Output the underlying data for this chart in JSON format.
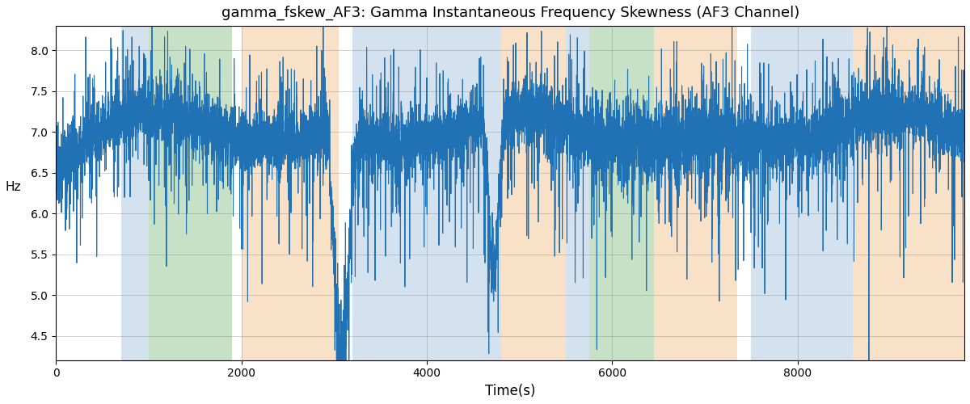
{
  "title": "gamma_fskew_AF3: Gamma Instantaneous Frequency Skewness (AF3 Channel)",
  "xlabel": "Time(s)",
  "ylabel": "Hz",
  "xlim": [
    0,
    9800
  ],
  "ylim": [
    4.2,
    8.3
  ],
  "yticks": [
    4.5,
    5.0,
    5.5,
    6.0,
    6.5,
    7.0,
    7.5,
    8.0
  ],
  "line_color": "#2171b5",
  "line_width": 0.8,
  "bg_regions": [
    {
      "start": 700,
      "end": 1000,
      "color": "#aac4e0",
      "alpha": 0.5
    },
    {
      "start": 1000,
      "end": 1900,
      "color": "#90c490",
      "alpha": 0.5
    },
    {
      "start": 2000,
      "end": 3050,
      "color": "#f5c99a",
      "alpha": 0.55
    },
    {
      "start": 3200,
      "end": 4800,
      "color": "#aac4e0",
      "alpha": 0.5
    },
    {
      "start": 4800,
      "end": 5500,
      "color": "#f5c99a",
      "alpha": 0.55
    },
    {
      "start": 5500,
      "end": 5750,
      "color": "#aac4e0",
      "alpha": 0.5
    },
    {
      "start": 5750,
      "end": 6450,
      "color": "#90c490",
      "alpha": 0.5
    },
    {
      "start": 6450,
      "end": 7350,
      "color": "#f5c99a",
      "alpha": 0.55
    },
    {
      "start": 7500,
      "end": 8600,
      "color": "#aac4e0",
      "alpha": 0.5
    },
    {
      "start": 8600,
      "end": 9800,
      "color": "#f5c99a",
      "alpha": 0.55
    }
  ],
  "random_seed": 12345,
  "n_points": 9700
}
